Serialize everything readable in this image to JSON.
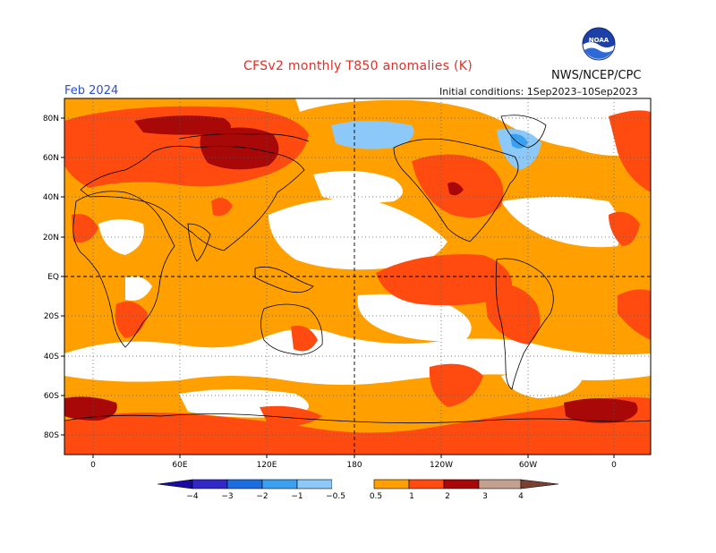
{
  "header": {
    "title": "CFSv2 monthly T850 anomalies (K)",
    "organization": "NWS/NCEP/CPC",
    "month": "Feb 2024",
    "initial_conditions": "Initial conditions: 1Sep2023–10Sep2023",
    "logo_text": "NOAA",
    "logo_icon": "noaa-logo-icon"
  },
  "map": {
    "lat_labels": [
      "80N",
      "60N",
      "40N",
      "20N",
      "EQ",
      "20S",
      "40S",
      "60S",
      "80S"
    ],
    "lon_labels": [
      "0",
      "60E",
      "120E",
      "180",
      "120W",
      "60W",
      "0"
    ]
  },
  "colorbar": {
    "labels": [
      "−4",
      "−3",
      "−2",
      "−1",
      "−0.5",
      "0.5",
      "1",
      "2",
      "3",
      "4"
    ],
    "colors": [
      "#1a0ca0",
      "#3228c8",
      "#1c6ee0",
      "#3ca0f0",
      "#8cc8f8",
      "#ffffff",
      "#ffa000",
      "#ff4a10",
      "#a80808",
      "#c4a090",
      "#7a4030"
    ]
  }
}
